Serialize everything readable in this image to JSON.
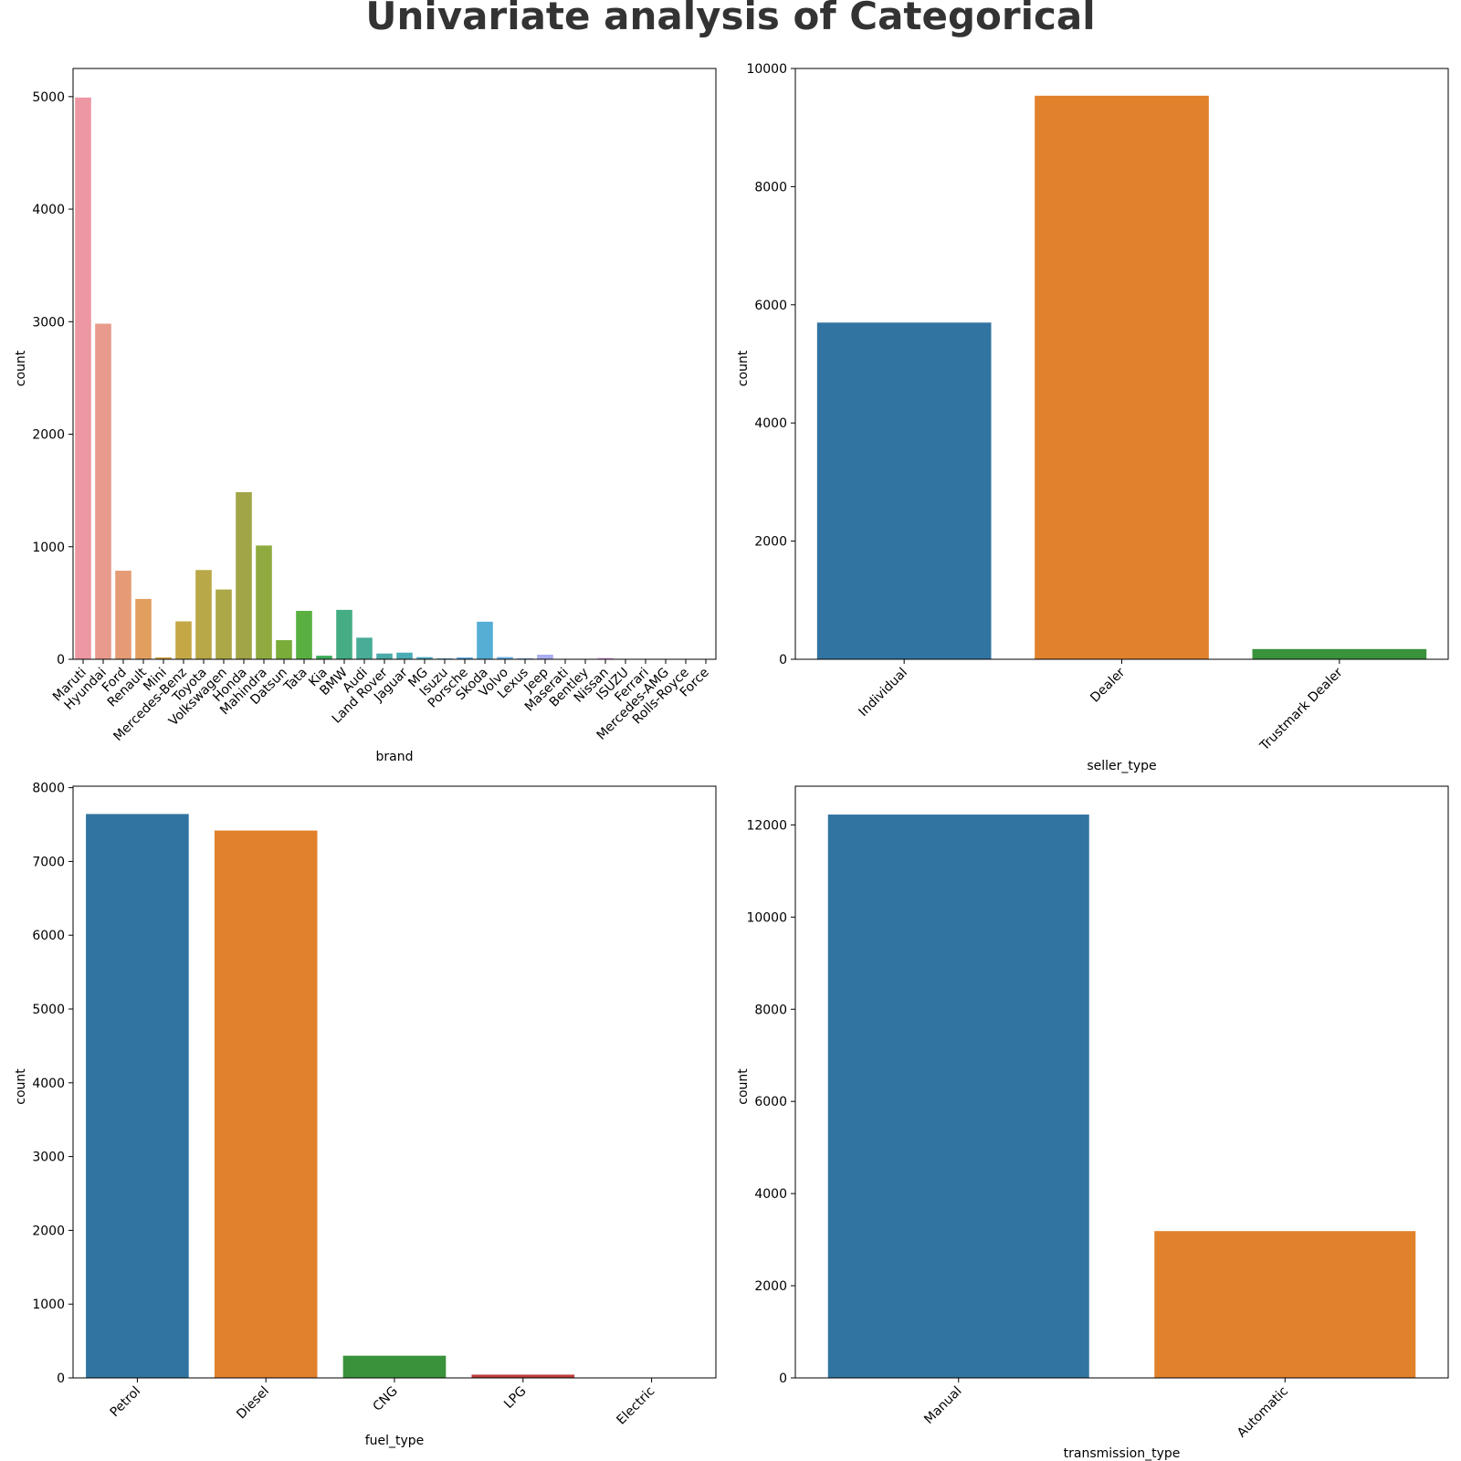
{
  "figure": {
    "title": "Univariate analysis of Categorical"
  },
  "chart_data": [
    {
      "type": "bar",
      "xlabel": "brand",
      "ylabel": "count",
      "ylim": [
        0,
        5250
      ],
      "yticks": [
        0,
        1000,
        2000,
        3000,
        4000,
        5000
      ],
      "grid": false,
      "categories": [
        "Maruti",
        "Hyundai",
        "Ford",
        "Renault",
        "Mini",
        "Mercedes-Benz",
        "Toyota",
        "Volkswagen",
        "Honda",
        "Mahindra",
        "Datsun",
        "Tata",
        "Kia",
        "BMW",
        "Audi",
        "Land Rover",
        "Jaguar",
        "MG",
        "Isuzu",
        "Porsche",
        "Skoda",
        "Volvo",
        "Lexus",
        "Jeep",
        "Maserati",
        "Bentley",
        "Nissan",
        "ISUZU",
        "Ferrari",
        "Mercedes-AMG",
        "Rolls-Royce",
        "Force"
      ],
      "values": [
        4992,
        2982,
        787,
        536,
        17,
        337,
        793,
        620,
        1485,
        1011,
        170,
        430,
        32,
        439,
        192,
        51,
        59,
        19,
        8,
        16,
        334,
        20,
        10,
        41,
        2,
        3,
        11,
        1,
        1,
        1,
        2,
        1
      ],
      "colors": [
        "#ec97a3",
        "#e89a8c",
        "#e59c76",
        "#e19e5f",
        "#d1a344",
        "#c4a846",
        "#b8a847",
        "#aca847",
        "#a1a547",
        "#8fab3f",
        "#7aac3a",
        "#59b041",
        "#3fae5a",
        "#45ad84",
        "#48ac97",
        "#4aaba7",
        "#4aabb5",
        "#4eaac3",
        "#56a9d4",
        "#5aa7e1",
        "#56aed4",
        "#6eb2e6",
        "#8dafec",
        "#a9adf0",
        "#c2a9ee",
        "#d2a2ed",
        "#e09ce6",
        "#e899d8",
        "#ea97c8",
        "#ec96b9",
        "#ec97ac",
        "#ec97a3"
      ]
    },
    {
      "type": "bar",
      "xlabel": "seller_type",
      "ylabel": "count",
      "ylim": [
        0,
        10000
      ],
      "yticks": [
        0,
        2000,
        4000,
        6000,
        8000,
        10000
      ],
      "grid": false,
      "categories": [
        "Individual",
        "Dealer",
        "Trustmark Dealer"
      ],
      "values": [
        5699,
        9539,
        173
      ],
      "colors": [
        "#3274a1",
        "#e1812c",
        "#3a923a"
      ]
    },
    {
      "type": "bar",
      "xlabel": "fuel_type",
      "ylabel": "count",
      "ylim": [
        0,
        8020
      ],
      "yticks": [
        0,
        1000,
        2000,
        3000,
        4000,
        5000,
        6000,
        7000,
        8000
      ],
      "grid": false,
      "categories": [
        "Petrol",
        "Diesel",
        "CNG",
        "LPG",
        "Electric"
      ],
      "values": [
        7643,
        7419,
        301,
        44,
        4
      ],
      "colors": [
        "#3274a1",
        "#e1812c",
        "#3a923a",
        "#c03d3e",
        "#9372b2"
      ]
    },
    {
      "type": "bar",
      "xlabel": "transmission_type",
      "ylabel": "count",
      "ylim": [
        0,
        12840
      ],
      "yticks": [
        0,
        2000,
        4000,
        6000,
        8000,
        10000,
        12000
      ],
      "grid": false,
      "categories": [
        "Manual",
        "Automatic"
      ],
      "values": [
        12225,
        3186
      ],
      "colors": [
        "#3274a1",
        "#e1812c"
      ]
    }
  ]
}
